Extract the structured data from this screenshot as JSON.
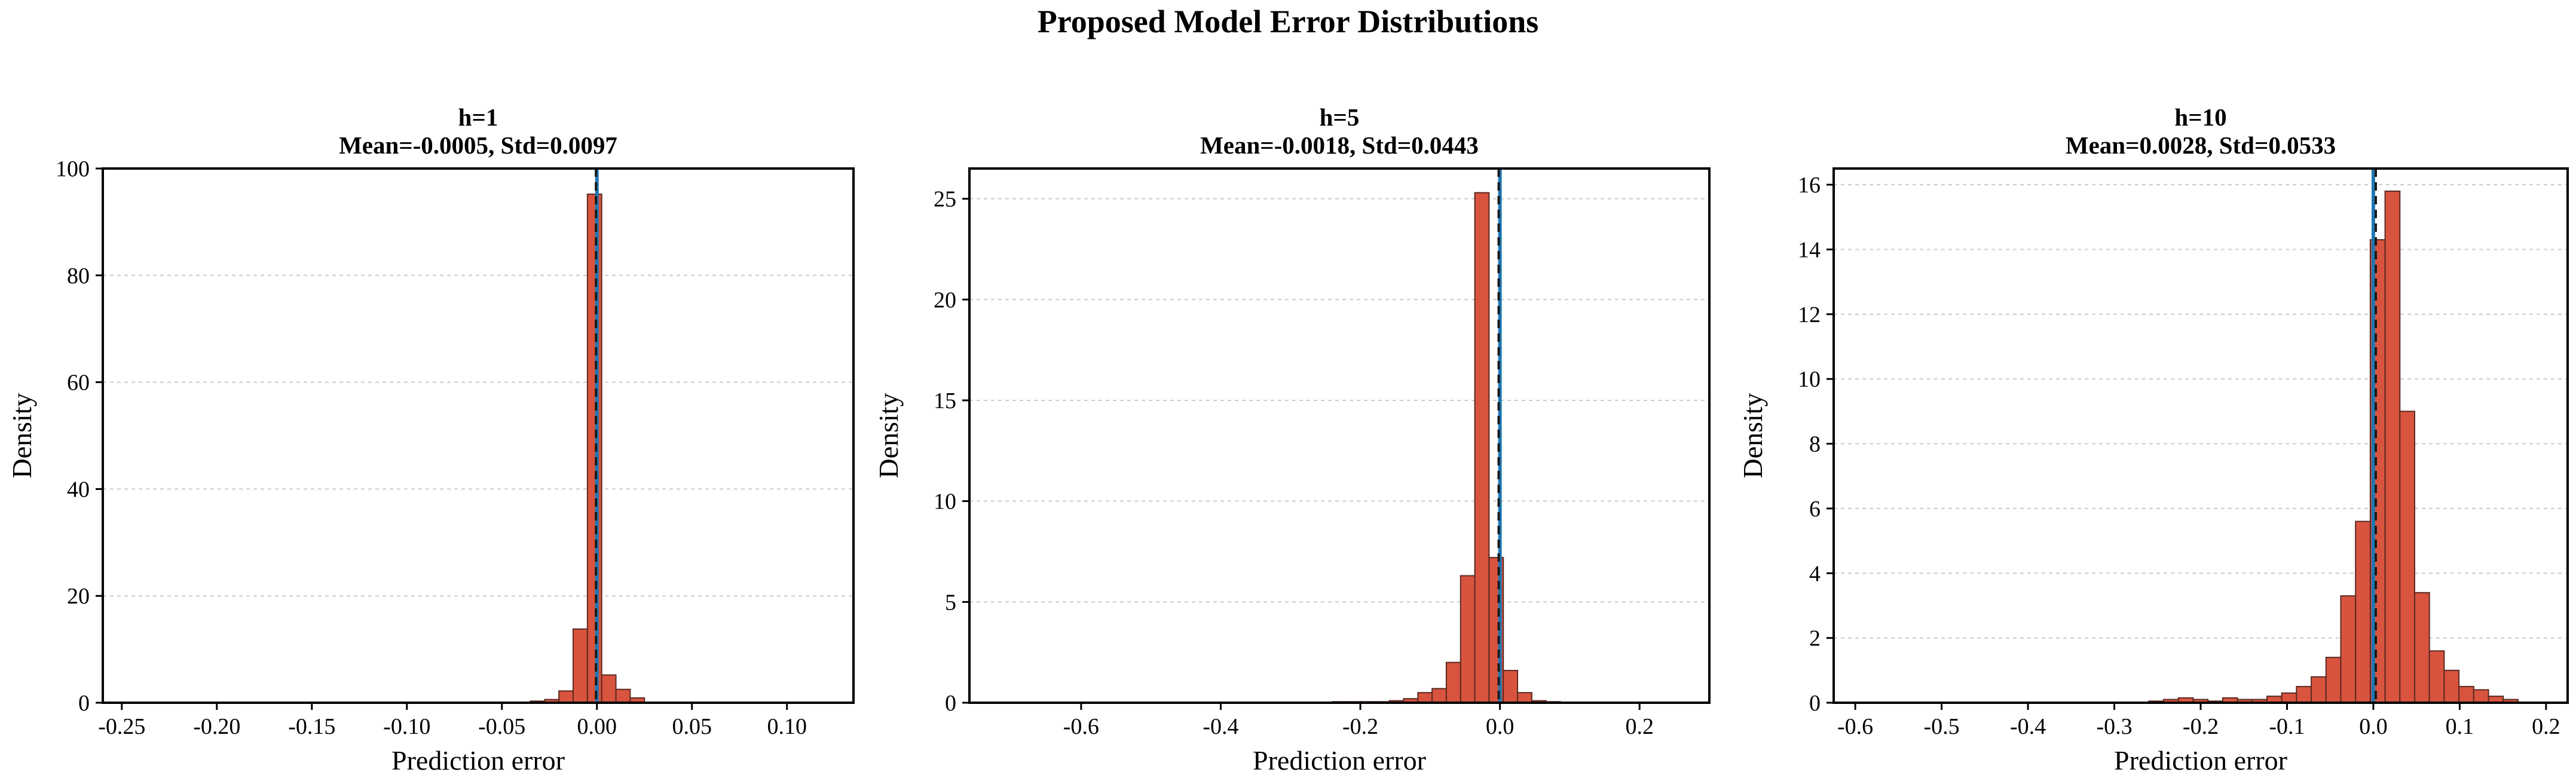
{
  "figure": {
    "title": "Proposed Model Error Distributions"
  },
  "colors": {
    "bar_fill": "#d9543f",
    "bar_edge": "#5a2a22",
    "zero_line": "#1f77b4",
    "mean_line": "#1a1a1a"
  },
  "chart_data": [
    {
      "type": "histogram",
      "title_line1": "h=1",
      "title_line2": "Mean=-0.0005, Std=0.0097",
      "xlabel": "Prediction error",
      "ylabel": "Density",
      "xlim": [
        -0.26,
        0.135
      ],
      "ylim": [
        0,
        100
      ],
      "xticks": [
        -0.25,
        -0.2,
        -0.15,
        -0.1,
        -0.05,
        0.0,
        0.05,
        0.1
      ],
      "xtick_labels": [
        "-0.25",
        "-0.20",
        "-0.15",
        "-0.10",
        "-0.05",
        "0.00",
        "0.05",
        "0.10"
      ],
      "yticks": [
        0,
        20,
        40,
        60,
        80,
        100
      ],
      "ytick_labels": [
        "0",
        "20",
        "40",
        "60",
        "80",
        "100"
      ],
      "grid": true,
      "bin_start": -0.0425,
      "bin_width": 0.0075,
      "values": [
        0.1,
        0.3,
        0.6,
        2.2,
        13.8,
        95.2,
        5.2,
        2.5,
        0.9,
        0.1
      ],
      "mean": -0.0005,
      "zero_line": 0
    },
    {
      "type": "histogram",
      "title_line1": "h=5",
      "title_line2": "Mean=-0.0018, Std=0.0443",
      "xlabel": "Prediction error",
      "ylabel": "Density",
      "xlim": [
        -0.76,
        0.3
      ],
      "ylim": [
        0,
        26.5
      ],
      "xticks": [
        -0.6,
        -0.4,
        -0.2,
        0.0,
        0.2
      ],
      "xtick_labels": [
        "-0.6",
        "-0.4",
        "-0.2",
        "0.0",
        "0.2"
      ],
      "yticks": [
        0,
        5,
        10,
        15,
        20,
        25
      ],
      "ytick_labels": [
        "0",
        "5",
        "10",
        "15",
        "20",
        "25"
      ],
      "grid": true,
      "bin_start": -0.24,
      "bin_width": 0.0204,
      "values": [
        0.05,
        0.05,
        0.05,
        0.05,
        0.1,
        0.2,
        0.5,
        0.7,
        2.0,
        6.3,
        25.3,
        7.2,
        1.6,
        0.5,
        0.1,
        0.05
      ],
      "mean": -0.0018,
      "zero_line": 0
    },
    {
      "type": "histogram",
      "title_line1": "h=10",
      "title_line2": "Mean=0.0028, Std=0.0533",
      "xlabel": "Prediction error",
      "ylabel": "Density",
      "xlim": [
        -0.625,
        0.225
      ],
      "ylim": [
        0,
        16.5
      ],
      "xticks": [
        -0.6,
        -0.5,
        -0.4,
        -0.3,
        -0.2,
        -0.1,
        0.0,
        0.1,
        0.2
      ],
      "xtick_labels": [
        "-0.6",
        "-0.5",
        "-0.4",
        "-0.3",
        "-0.2",
        "-0.1",
        "0.0",
        "0.1",
        "0.2"
      ],
      "yticks": [
        0,
        2,
        4,
        6,
        8,
        10,
        12,
        14,
        16
      ],
      "ytick_labels": [
        "0",
        "2",
        "4",
        "6",
        "8",
        "10",
        "12",
        "14",
        "16"
      ],
      "grid": true,
      "bin_start": -0.26,
      "bin_width": 0.0171,
      "values": [
        0.05,
        0.1,
        0.15,
        0.1,
        0.05,
        0.15,
        0.1,
        0.1,
        0.2,
        0.3,
        0.5,
        0.8,
        1.4,
        3.3,
        5.6,
        14.3,
        15.8,
        9.0,
        3.4,
        1.6,
        1.0,
        0.5,
        0.4,
        0.2,
        0.1
      ],
      "mean": 0.0028,
      "zero_line": 0
    }
  ]
}
